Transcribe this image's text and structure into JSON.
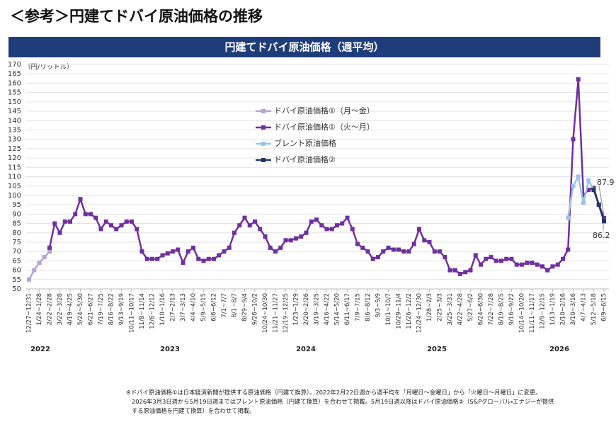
{
  "page_title": "＜参考＞円建てドバイ原油価格の推移",
  "chart_data": {
    "type": "line",
    "title": "円建てドバイ原油価格（週平均）",
    "y_unit": "（円/リットル）",
    "years": [
      "2022",
      "2023",
      "2024",
      "2025",
      "2026"
    ],
    "ylim": [
      50,
      170
    ],
    "yticks": [
      50,
      55,
      60,
      65,
      70,
      75,
      80,
      85,
      90,
      95,
      100,
      105,
      110,
      115,
      120,
      125,
      130,
      135,
      140,
      145,
      150,
      155,
      160,
      165,
      170
    ],
    "grid": true,
    "categories": [
      "12/27~12/31",
      null,
      "1/24~1/28",
      null,
      "2/22~2/28",
      null,
      "3/22~3/28",
      null,
      "4/19~4/25",
      null,
      "5/24~5/30",
      null,
      "6/21~6/27",
      null,
      "7/19~7/25",
      null,
      "8/16~8/22",
      null,
      "9/13~9/19",
      null,
      "10/11~10/17",
      null,
      "11/8~11/14",
      null,
      "12/6~12/12",
      null,
      "1/10~1/16",
      null,
      "2/7~2/13",
      null,
      "3/7~3/13",
      null,
      "4/4~4/10",
      null,
      "5/9~5/15",
      null,
      "6/6~6/12",
      null,
      "7/1~7/7",
      null,
      "8/1~8/7",
      null,
      "8/29~9/4",
      null,
      "9/26~10/2",
      null,
      "10/24~10/30",
      null,
      "11/21~11/27",
      null,
      "12/19~12/25",
      null,
      "1/23~1/29",
      null,
      "2/20~2/26",
      null,
      "3/19~3/25",
      null,
      "4/16~4/22",
      null,
      "5/14~5/20",
      null,
      "6/11~6/17",
      null,
      "7/9~7/15",
      null,
      "8/6~8/12",
      null,
      "9/3~9/9",
      null,
      "10/1~10/7",
      null,
      "10/29~11/4",
      null,
      "11/26~12/2",
      null,
      "12/24~12/30",
      null,
      "1/28~2/3",
      null,
      "2/25~3/3",
      null,
      "3/25~3/31",
      null,
      "4/22~4/28",
      null,
      "5/27~6/2",
      null,
      "6/24~6/30",
      null,
      "7/22~7/28",
      null,
      "8/19~8/25",
      null,
      "9/16~9/22",
      null,
      "10/14~10/20",
      null,
      "11/11~11/17",
      null,
      "12/9~12/15",
      null,
      "1/13~1/19",
      null,
      "2/10~2/16",
      null,
      "3/10~3/16",
      null,
      "4/7~4/13",
      null,
      "5/12~5/18",
      null,
      "6/9~6/15"
    ],
    "series": [
      {
        "name": "ドバイ原油価格①（月～金）",
        "color": "#b4a3d4",
        "values": [
          55,
          60,
          64,
          67,
          70,
          null,
          null,
          null,
          null,
          null,
          null,
          null,
          null,
          null,
          null,
          null,
          null,
          null,
          null,
          null,
          null,
          null,
          null,
          null,
          null,
          null,
          null,
          null,
          null,
          null,
          null,
          null,
          null,
          null,
          null,
          null,
          null,
          null,
          null,
          null,
          null,
          null,
          null,
          null,
          null,
          null,
          null,
          null,
          null,
          null,
          null,
          null,
          null,
          null,
          null,
          null,
          null,
          null,
          null,
          null,
          null,
          null,
          null,
          null,
          null,
          null,
          null,
          null,
          null,
          null,
          null,
          null,
          null,
          null,
          null,
          null,
          null,
          null,
          null,
          null,
          null,
          null,
          null,
          null,
          null,
          null,
          null,
          null,
          null,
          null,
          null,
          null,
          null,
          null,
          null,
          null,
          null,
          null,
          null,
          null,
          null,
          null,
          null,
          null,
          null,
          null,
          null,
          null,
          null,
          null,
          null,
          null,
          null
        ]
      },
      {
        "name": "ドバイ原油価格①（火～月）",
        "color": "#7030a0",
        "values": [
          null,
          null,
          null,
          null,
          72,
          85,
          80,
          86,
          86,
          90,
          98,
          90,
          90,
          88,
          82,
          86,
          84,
          82,
          84,
          86,
          86,
          82,
          70,
          66,
          66,
          66,
          68,
          69,
          70,
          71,
          64,
          70,
          72,
          66,
          65,
          66,
          66,
          68,
          70,
          72,
          80,
          84,
          88,
          84,
          86,
          82,
          78,
          72,
          70,
          72,
          76,
          76,
          77,
          78,
          80,
          86,
          87,
          84,
          82,
          82,
          84,
          85,
          88,
          82,
          74,
          72,
          70,
          66,
          67,
          70,
          72,
          71,
          71,
          70,
          70,
          74,
          82,
          76,
          75,
          70,
          70,
          67,
          60,
          60,
          58,
          59,
          60,
          68,
          63,
          66,
          67,
          65,
          65,
          66,
          66,
          63,
          63,
          64,
          64,
          63,
          62,
          60,
          62,
          63,
          66,
          71,
          130,
          162,
          100,
          103,
          104,
          95,
          87.9
        ]
      },
      {
        "name": "ブレント原油価格",
        "color": "#9dc3e6",
        "values": [
          null,
          null,
          null,
          null,
          null,
          null,
          null,
          null,
          null,
          null,
          null,
          null,
          null,
          null,
          null,
          null,
          null,
          null,
          null,
          null,
          null,
          null,
          null,
          null,
          null,
          null,
          null,
          null,
          null,
          null,
          null,
          null,
          null,
          null,
          null,
          null,
          null,
          null,
          null,
          null,
          null,
          null,
          null,
          null,
          null,
          null,
          null,
          null,
          null,
          null,
          null,
          null,
          null,
          null,
          null,
          null,
          null,
          null,
          null,
          null,
          null,
          null,
          null,
          null,
          null,
          null,
          null,
          null,
          null,
          null,
          null,
          null,
          null,
          null,
          null,
          null,
          null,
          null,
          null,
          null,
          null,
          null,
          null,
          null,
          null,
          null,
          null,
          null,
          null,
          null,
          null,
          null,
          null,
          null,
          null,
          null,
          null,
          null,
          null,
          null,
          null,
          null,
          null,
          null,
          null,
          88,
          105,
          110,
          96,
          108,
          103,
          null,
          null
        ]
      },
      {
        "name": "ドバイ原油価格②",
        "color": "#1f3864",
        "values": [
          null,
          null,
          null,
          null,
          null,
          null,
          null,
          null,
          null,
          null,
          null,
          null,
          null,
          null,
          null,
          null,
          null,
          null,
          null,
          null,
          null,
          null,
          null,
          null,
          null,
          null,
          null,
          null,
          null,
          null,
          null,
          null,
          null,
          null,
          null,
          null,
          null,
          null,
          null,
          null,
          null,
          null,
          null,
          null,
          null,
          null,
          null,
          null,
          null,
          null,
          null,
          null,
          null,
          null,
          null,
          null,
          null,
          null,
          null,
          null,
          null,
          null,
          null,
          null,
          null,
          null,
          null,
          null,
          null,
          null,
          null,
          null,
          null,
          null,
          null,
          null,
          null,
          null,
          null,
          null,
          null,
          null,
          null,
          null,
          null,
          null,
          null,
          null,
          null,
          null,
          null,
          null,
          null,
          null,
          null,
          null,
          null,
          null,
          null,
          null,
          null,
          null,
          null,
          null,
          null,
          null,
          null,
          null,
          null,
          null,
          103,
          95,
          86.2
        ]
      }
    ],
    "footnote": [
      "※ドバイ原油価格①は日本経済新聞が提供する原油価格（円建て換算）。2022年2月22日週から週平均を「月曜日～金曜日」から「火曜日～月曜日」に変更。",
      "2026年3月3日週から5月19日週まではブレント原油価格（円建て換算）を合わせて掲載。5月19日週以降はドバイ原油価格②（S&Pグローバル・エナジーが提供",
      "する原油価格を円建て換算）を合わせて掲載。"
    ]
  }
}
